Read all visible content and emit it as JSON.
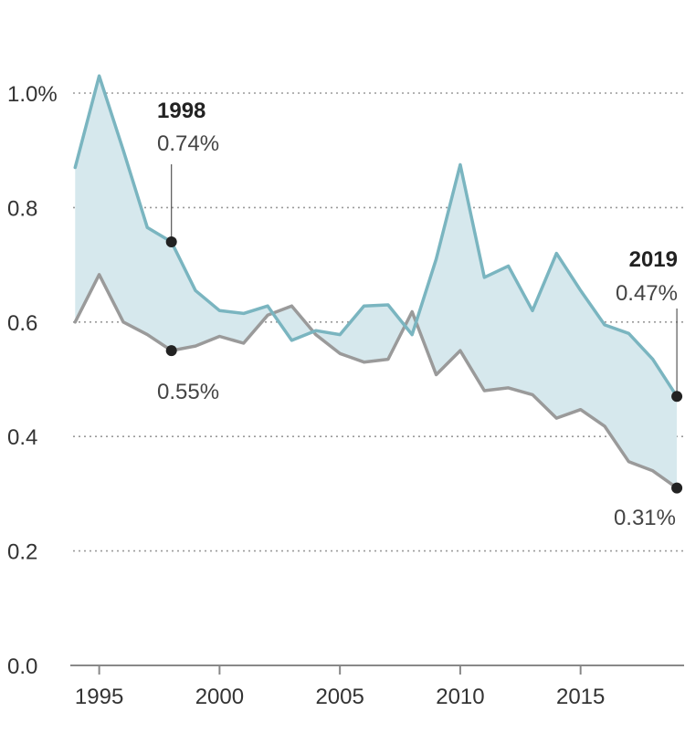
{
  "chart_data": {
    "type": "line",
    "title": "",
    "xlabel": "",
    "ylabel": "",
    "x": [
      1994,
      1995,
      1996,
      1997,
      1998,
      1999,
      2000,
      2001,
      2002,
      2003,
      2004,
      2005,
      2006,
      2007,
      2008,
      2009,
      2010,
      2011,
      2012,
      2013,
      2014,
      2015,
      2016,
      2017,
      2018,
      2019
    ],
    "series": [
      {
        "name": "teal",
        "color": "#7ab5c0",
        "values": [
          0.87,
          1.03,
          0.9,
          0.765,
          0.74,
          0.655,
          0.62,
          0.615,
          0.628,
          0.568,
          0.585,
          0.578,
          0.628,
          0.63,
          0.578,
          0.71,
          0.875,
          0.678,
          0.698,
          0.62,
          0.72,
          0.655,
          0.595,
          0.58,
          0.535,
          0.47
        ]
      },
      {
        "name": "gray",
        "color": "#9a9a9a",
        "values": [
          0.6,
          0.683,
          0.6,
          0.578,
          0.55,
          0.558,
          0.575,
          0.563,
          0.612,
          0.628,
          0.578,
          0.545,
          0.53,
          0.535,
          0.618,
          0.508,
          0.55,
          0.48,
          0.485,
          0.473,
          0.432,
          0.447,
          0.418,
          0.356,
          0.34,
          0.31
        ]
      }
    ],
    "fill_color": "#d6e8ed",
    "ylim": [
      0,
      1.0
    ],
    "xlim": [
      1993.8,
      2019.3
    ],
    "y_ticks": [
      {
        "value": 0.0,
        "label": "0.0"
      },
      {
        "value": 0.2,
        "label": "0.2"
      },
      {
        "value": 0.4,
        "label": "0.4"
      },
      {
        "value": 0.6,
        "label": "0.6"
      },
      {
        "value": 0.8,
        "label": "0.8"
      },
      {
        "value": 1.0,
        "label": "1.0%"
      }
    ],
    "x_ticks": [
      {
        "value": 1995,
        "label": "1995"
      },
      {
        "value": 2000,
        "label": "2000"
      },
      {
        "value": 2005,
        "label": "2005"
      },
      {
        "value": 2010,
        "label": "2010"
      },
      {
        "value": 2015,
        "label": "2015"
      }
    ],
    "annotations": {
      "y1998": {
        "year_label": "1998",
        "x": 1998,
        "teal": 0.74,
        "gray": 0.55,
        "teal_label": "0.74%",
        "gray_label": "0.55%"
      },
      "y2019": {
        "year_label": "2019",
        "x": 2019,
        "teal": 0.47,
        "gray": 0.31,
        "teal_label": "0.47%",
        "gray_label": "0.31%"
      }
    },
    "grid": true
  }
}
